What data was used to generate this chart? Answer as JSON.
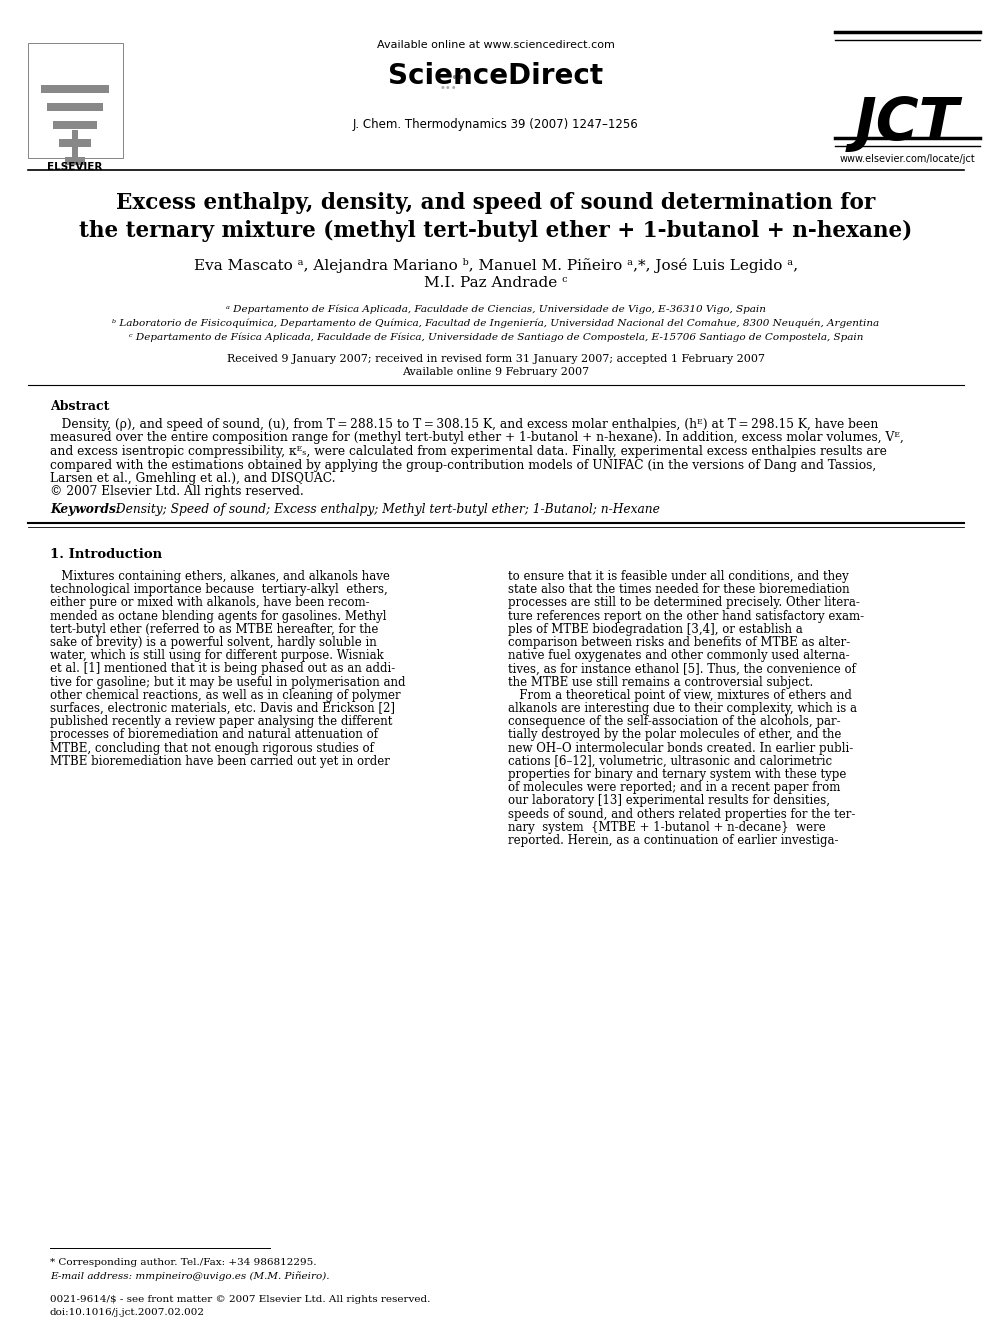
{
  "background_color": "#ffffff",
  "header_available": "Available online at www.sciencedirect.com",
  "header_journal": "J. Chem. Thermodynamics 39 (2007) 1247–1256",
  "header_sd": "ScienceDirect",
  "header_jct": "JCT",
  "header_elsevier": "ELSEVIER",
  "header_website": "www.elsevier.com/locate/jct",
  "title_line1": "Excess enthalpy, density, and speed of sound determination for",
  "title_line2_pre": "the ternary mixture (methyl ",
  "title_line2_tert": "tert",
  "title_line2_mid": "-butyl ether + 1-butanol + ",
  "title_line2_n": "n",
  "title_line2_end": "-hexane)",
  "authors_line1": "Eva Mascato ᵃ, Alejandra Mariano ᵇ, Manuel M. Piñeiro ᵃ,*, José Luis Legido ᵃ,",
  "authors_line2": "M.I. Paz Andrade ᶜ",
  "affil_a": "ᵃ Departamento de Física Aplicada, Faculdade de Ciencias, Universidade de Vigo, E-36310 Vigo, Spain",
  "affil_b": "ᵇ Laboratorio de Fisicoquímica, Departamento de Química, Facultad de Ingeniería, Universidad Nacional del Comahue, 8300 Neuquén, Argentina",
  "affil_c": "ᶜ Departamento de Física Aplicada, Faculdade de Física, Universidade de Santiago de Compostela, E-15706 Santiago de Compostela, Spain",
  "received": "Received 9 January 2007; received in revised form 31 January 2007; accepted 1 February 2007",
  "available_online": "Available online 9 February 2007",
  "abstract_label": "Abstract",
  "abstract_body": "   Density, (ρ), and speed of sound, (u), from T = 288.15 to T = 308.15 K, and excess molar enthalpies, (hᴱ) at T = 298.15 K, have been\nmeasured over the entire composition range for (methyl tert-butyl ether + 1-butanol + n-hexane). In addition, excess molar volumes, Vᴱ,\nand excess isentropic compressibility, κᴱₛ, were calculated from experimental data. Finally, experimental excess enthalpies results are\ncompared with the estimations obtained by applying the group-contribution models of UNIFAC (in the versions of Dang and Tassios,\nLarsen et al., Gmehling et al.), and DISQUAC.\n© 2007 Elsevier Ltd. All rights reserved.",
  "keywords_label": "Keywords:",
  "keywords_body": "  Density; Speed of sound; Excess enthalpy; Methyl tert-butyl ether; 1-Butanol; n-Hexane",
  "sec1_title": "1. Introduction",
  "sec1_col1": [
    "   Mixtures containing ethers, alkanes, and alkanols have",
    "technological importance because  tertiary-alkyl  ethers,",
    "either pure or mixed with alkanols, have been recom-",
    "mended as octane blending agents for gasolines. Methyl",
    "tert-butyl ether (referred to as MTBE hereafter, for the",
    "sake of brevity) is a powerful solvent, hardly soluble in",
    "water, which is still using for different purpose. Wisniak",
    "et al. [1] mentioned that it is being phased out as an addi-",
    "tive for gasoline; but it may be useful in polymerisation and",
    "other chemical reactions, as well as in cleaning of polymer",
    "surfaces, electronic materials, etc. Davis and Erickson [2]",
    "published recently a review paper analysing the different",
    "processes of bioremediation and natural attenuation of",
    "MTBE, concluding that not enough rigorous studies of",
    "MTBE bioremediation have been carried out yet in order"
  ],
  "sec1_col2": [
    "to ensure that it is feasible under all conditions, and they",
    "state also that the times needed for these bioremediation",
    "processes are still to be determined precisely. Other litera-",
    "ture references report on the other hand satisfactory exam-",
    "ples of MTBE biodegradation [3,4], or establish a",
    "comparison between risks and benefits of MTBE as alter-",
    "native fuel oxygenates and other commonly used alterna-",
    "tives, as for instance ethanol [5]. Thus, the convenience of",
    "the MTBE use still remains a controversial subject.",
    "   From a theoretical point of view, mixtures of ethers and",
    "alkanols are interesting due to their complexity, which is a",
    "consequence of the self-association of the alcohols, par-",
    "tially destroyed by the polar molecules of ether, and the",
    "new OH–O intermolecular bonds created. In earlier publi-",
    "cations [6–12], volumetric, ultrasonic and calorimetric",
    "properties for binary and ternary system with these type",
    "of molecules were reported; and in a recent paper from",
    "our laboratory [13] experimental results for densities,",
    "speeds of sound, and others related properties for the ter-",
    "nary  system  {MTBE + 1-butanol + n-decane}  were",
    "reported. Herein, as a continuation of earlier investiga-"
  ],
  "footnote_line": "* Corresponding author. Tel./Fax: +34 986812295.",
  "footnote_email": "E-mail address: mmpineiro@uvigo.es (M.M. Piñeiro).",
  "footer_issn": "0021-9614/$ - see front matter © 2007 Elsevier Ltd. All rights reserved.",
  "footer_doi": "doi:10.1016/j.jct.2007.02.002"
}
